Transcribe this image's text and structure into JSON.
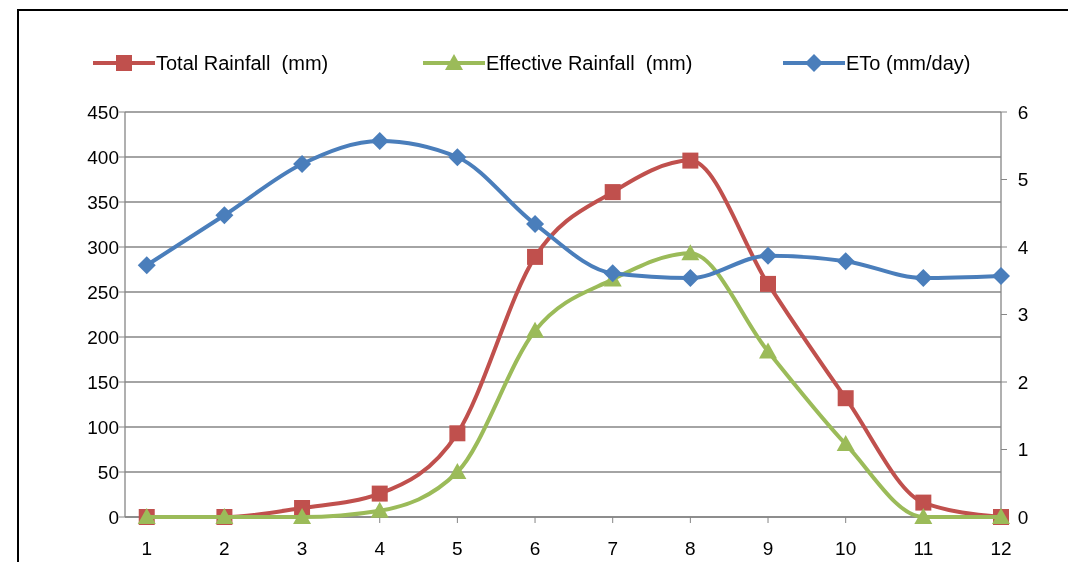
{
  "chart_data": {
    "type": "line",
    "x": [
      1,
      2,
      3,
      4,
      5,
      6,
      7,
      8,
      9,
      10,
      11,
      12
    ],
    "xlim": [
      0.72,
      12
    ],
    "xticks": [
      1,
      2,
      3,
      4,
      5,
      6,
      7,
      8,
      9,
      10,
      11,
      12
    ],
    "ylim": [
      0,
      450
    ],
    "yticks": [
      0,
      50,
      100,
      150,
      200,
      250,
      300,
      350,
      400,
      450
    ],
    "y2lim": [
      0,
      6
    ],
    "y2ticks": [
      0,
      1,
      2,
      3,
      4,
      5,
      6
    ],
    "grid": "y",
    "legend": "top",
    "series": [
      {
        "name": "Total Rainfall  (mm)",
        "color": "#c0504d",
        "marker": "square",
        "values": [
          0,
          0,
          10,
          26,
          93,
          289,
          361,
          396,
          259,
          132,
          16,
          0
        ]
      },
      {
        "name": "Effective Rainfall  (mm)",
        "color": "#9bbb59",
        "marker": "triangle",
        "values": [
          0,
          0,
          0,
          7,
          50,
          207,
          264,
          293,
          184,
          81,
          0,
          0
        ]
      },
      {
        "name": "ETo (mm/day)",
        "color": "#4a7ebb",
        "marker": "diamond",
        "axis": "y2",
        "values": [
          3.73,
          4.47,
          5.23,
          5.57,
          5.33,
          4.34,
          3.61,
          3.54,
          3.87,
          3.79,
          3.54,
          3.57
        ]
      }
    ]
  }
}
